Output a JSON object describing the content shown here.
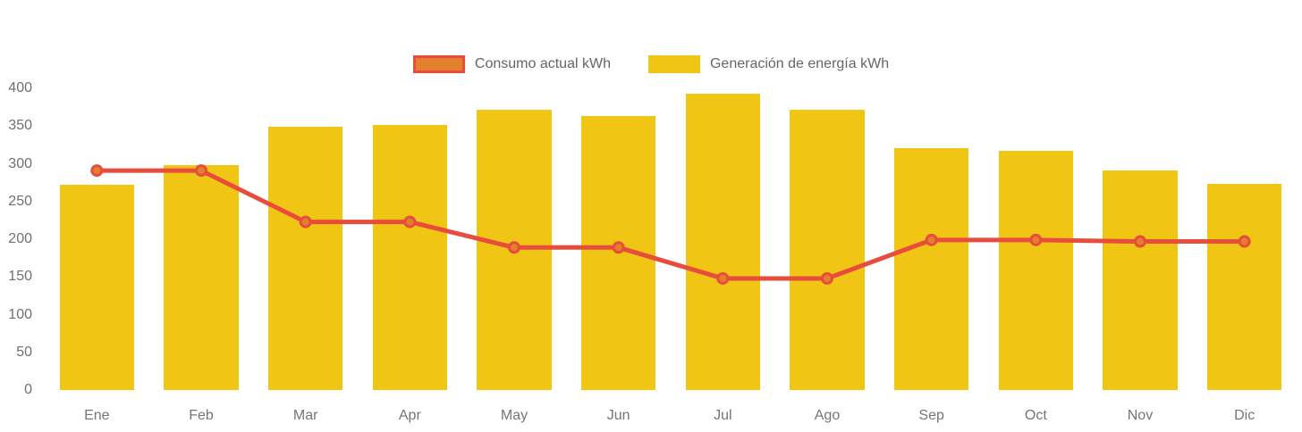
{
  "legend": {
    "items": [
      {
        "label": "Consumo actual kWh",
        "swatch": "line-swatch",
        "fill": "#e2802c",
        "border": "#e74c3c"
      },
      {
        "label": "Generación de energía kWh",
        "swatch": "bar-swatch",
        "fill": "#f0c514",
        "border": ""
      }
    ]
  },
  "axes": {
    "y_tick_labels": [
      "400",
      "350",
      "300",
      "250",
      "200",
      "150",
      "100",
      "50",
      "0"
    ],
    "x_tick_labels": [
      "Ene",
      "Feb",
      "Mar",
      "Apr",
      "May",
      "Jun",
      "Jul",
      "Ago",
      "Sep",
      "Oct",
      "Nov",
      "Dic"
    ]
  },
  "colors": {
    "bar_fill": "#f0c514",
    "line_stroke": "#e74c3c",
    "marker_fill": "#e2802c",
    "marker_stroke": "#e74c3c",
    "axis_text": "#757575"
  },
  "chart_data": {
    "type": "bar+line",
    "title": "",
    "xlabel": "",
    "ylabel": "",
    "categories": [
      "Ene",
      "Feb",
      "Mar",
      "Apr",
      "May",
      "Jun",
      "Jul",
      "Ago",
      "Sep",
      "Oct",
      "Nov",
      "Dic"
    ],
    "series": [
      {
        "name": "Consumo actual kWh",
        "type": "line",
        "color": "#e74c3c",
        "marker_fill": "#e2802c",
        "values": [
          291,
          291,
          223,
          223,
          189,
          189,
          148,
          148,
          199,
          199,
          197,
          197
        ]
      },
      {
        "name": "Generación de energía kWh",
        "type": "bar",
        "color": "#f0c514",
        "values": [
          272,
          298,
          349,
          351,
          372,
          363,
          393,
          372,
          321,
          317,
          291,
          273
        ]
      }
    ],
    "ylim": [
      0,
      400
    ],
    "ytick_step": 50,
    "yticks": [
      0,
      50,
      100,
      150,
      200,
      250,
      300,
      350,
      400
    ],
    "grid": false,
    "legend_position": "top-center",
    "units": "kWh"
  }
}
